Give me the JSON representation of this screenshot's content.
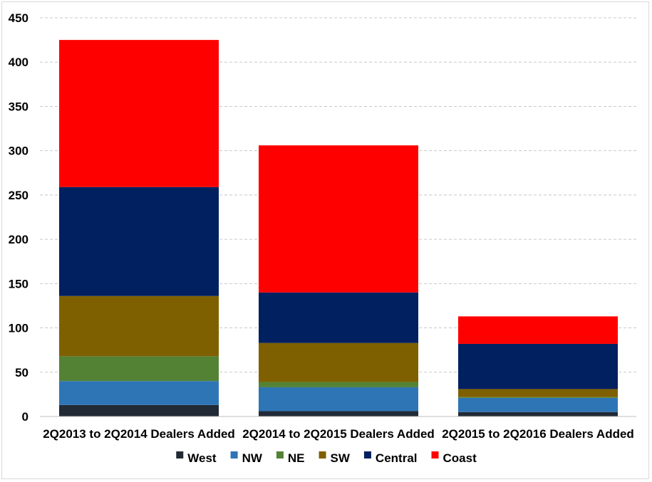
{
  "chart_data": {
    "type": "bar",
    "stacked": true,
    "categories": [
      "2Q2013 to 2Q2014 Dealers Added",
      "2Q2014 to 2Q2015 Dealers Added",
      "2Q2015 to 2Q2016 Dealers Added"
    ],
    "series": [
      {
        "name": "West",
        "color": "#222a35",
        "values": [
          13,
          6,
          5
        ]
      },
      {
        "name": "NW",
        "color": "#2e75b6",
        "values": [
          27,
          27,
          16
        ]
      },
      {
        "name": "NE",
        "color": "#548235",
        "values": [
          28,
          6,
          1
        ]
      },
      {
        "name": "SW",
        "color": "#7f6000",
        "values": [
          68,
          44,
          9
        ]
      },
      {
        "name": "Central",
        "color": "#002060",
        "values": [
          123,
          57,
          51
        ]
      },
      {
        "name": "Coast",
        "color": "#ff0000",
        "values": [
          166,
          166,
          31
        ]
      }
    ],
    "title": "",
    "xlabel": "",
    "ylabel": "",
    "ylim": [
      0,
      450
    ],
    "yticks": [
      "0",
      "50",
      "100",
      "150",
      "200",
      "250",
      "300",
      "350",
      "400",
      "450"
    ],
    "grid": true,
    "legend_position": "bottom"
  }
}
